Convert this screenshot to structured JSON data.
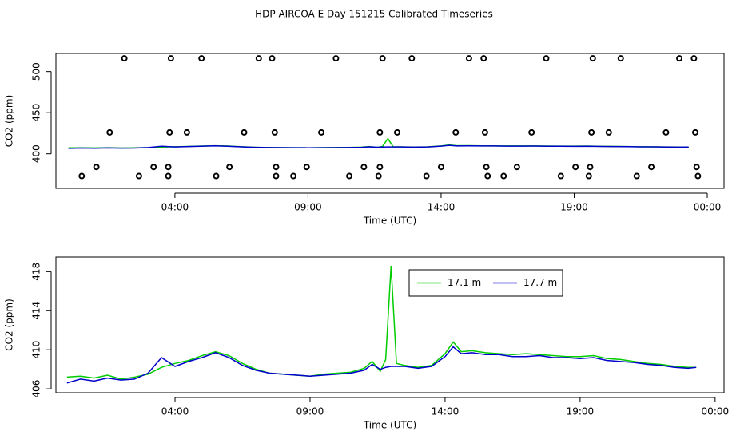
{
  "chart_data": [
    {
      "type": "line",
      "title": "HDP AIRCOA E  Day 151215  Calibrated Timeseries",
      "x_label": "Time (UTC)",
      "y_label": "CO2 (ppm)",
      "xlim": [
        -0.47,
        24.63
      ],
      "ylim": [
        358,
        522
      ],
      "xticks": [
        {
          "value": 4,
          "label": "04:00"
        },
        {
          "value": 9,
          "label": "09:00"
        },
        {
          "value": 14,
          "label": "14:00"
        },
        {
          "value": 19,
          "label": "19:00"
        },
        {
          "value": 24,
          "label": "00:00"
        }
      ],
      "yticks": [
        400,
        450,
        500
      ],
      "x": [
        0,
        0.5,
        1,
        1.5,
        2,
        2.5,
        3,
        3.5,
        4,
        4.5,
        5,
        5.5,
        6,
        6.5,
        7,
        7.5,
        8,
        8.5,
        9,
        9.5,
        10,
        10.5,
        11,
        11.3,
        11.6,
        11.8,
        12,
        12.2,
        12.5,
        13,
        13.5,
        14,
        14.3,
        14.6,
        15,
        15.5,
        16,
        16.5,
        17,
        17.5,
        18,
        18.5,
        19,
        19.5,
        20,
        20.5,
        21,
        21.5,
        22,
        22.5,
        23,
        23.3
      ],
      "series": [
        {
          "kind": "line",
          "color": "#00cc00",
          "values": [
            407.2,
            407.3,
            407.1,
            407.4,
            407.0,
            407.2,
            407.5,
            408.2,
            408.6,
            408.9,
            409.4,
            409.8,
            409.4,
            408.6,
            408.0,
            407.6,
            407.5,
            407.4,
            407.3,
            407.5,
            407.6,
            407.7,
            408.1,
            408.8,
            407.8,
            409.0,
            418.6,
            408.6,
            408.4,
            408.2,
            408.4,
            409.6,
            410.8,
            409.8,
            409.9,
            409.7,
            409.6,
            409.5,
            409.6,
            409.5,
            409.4,
            409.3,
            409.3,
            409.4,
            409.1,
            409.0,
            408.8,
            408.6,
            408.5,
            408.3,
            408.2,
            408.2
          ]
        },
        {
          "kind": "line",
          "color": "#0000cc",
          "values": [
            406.6,
            407.0,
            406.8,
            407.1,
            406.9,
            407.0,
            407.6,
            409.2,
            408.3,
            408.8,
            409.2,
            409.7,
            409.2,
            408.4,
            407.9,
            407.6,
            407.5,
            407.4,
            407.3,
            407.4,
            407.5,
            407.6,
            407.9,
            408.5,
            408.0,
            408.2,
            408.3,
            408.3,
            408.3,
            408.1,
            408.3,
            409.3,
            410.3,
            409.6,
            409.7,
            409.5,
            409.5,
            409.3,
            409.3,
            409.4,
            409.2,
            409.2,
            409.1,
            409.2,
            408.9,
            408.8,
            408.7,
            408.5,
            408.4,
            408.2,
            408.1,
            408.2
          ]
        },
        {
          "kind": "points",
          "color": "#000000",
          "x": [
            2.1,
            3.85,
            5.0,
            7.15,
            7.65,
            10.05,
            11.8,
            12.9,
            15.05,
            15.6,
            17.95,
            19.7,
            20.75,
            22.95,
            23.5,
            1.55,
            3.8,
            4.45,
            6.6,
            7.75,
            9.5,
            11.7,
            12.35,
            14.55,
            15.65,
            17.4,
            19.65,
            20.3,
            22.45,
            23.55,
            1.05,
            3.2,
            3.75,
            6.05,
            7.8,
            8.95,
            11.1,
            11.7,
            14.0,
            15.7,
            16.85,
            19.05,
            19.6,
            21.9,
            23.6,
            0.5,
            2.65,
            3.75,
            5.55,
            7.8,
            8.45,
            10.55,
            11.65,
            13.45,
            15.75,
            16.35,
            18.5,
            19.55,
            21.35,
            23.65
          ],
          "values": [
            516,
            516,
            516,
            516,
            516,
            516,
            516,
            516,
            516,
            516,
            516,
            516,
            516,
            516,
            516,
            426,
            426,
            426,
            426,
            426,
            426,
            426,
            426,
            426,
            426,
            426,
            426,
            426,
            426,
            426,
            384,
            384,
            384,
            384,
            384,
            384,
            384,
            384,
            384,
            384,
            384,
            384,
            384,
            384,
            384,
            373,
            373,
            373,
            373,
            373,
            373,
            373,
            373,
            373,
            373,
            373,
            373,
            373,
            373,
            373
          ]
        }
      ]
    },
    {
      "type": "line",
      "x_label": "Time (UTC)",
      "y_label": "CO2 (ppm)",
      "xlim": [
        -0.41,
        24.33
      ],
      "ylim": [
        405.6,
        419.5
      ],
      "xticks": [
        {
          "value": 4,
          "label": "04:00"
        },
        {
          "value": 9,
          "label": "09:00"
        },
        {
          "value": 14,
          "label": "14:00"
        },
        {
          "value": 19,
          "label": "19:00"
        },
        {
          "value": 24,
          "label": "00:00"
        }
      ],
      "yticks": [
        406,
        410,
        414,
        418
      ],
      "legend": "top-center",
      "x": [
        0,
        0.5,
        1,
        1.5,
        2,
        2.5,
        3,
        3.5,
        4,
        4.5,
        5,
        5.5,
        6,
        6.5,
        7,
        7.5,
        8,
        8.5,
        9,
        9.5,
        10,
        10.5,
        11,
        11.3,
        11.6,
        11.8,
        12,
        12.2,
        12.5,
        13,
        13.5,
        14,
        14.3,
        14.6,
        15,
        15.5,
        16,
        16.5,
        17,
        17.5,
        18,
        18.5,
        19,
        19.5,
        20,
        20.5,
        21,
        21.5,
        22,
        22.5,
        23,
        23.3
      ],
      "series": [
        {
          "kind": "line",
          "name": "17.1 m",
          "color": "#00cc00",
          "values": [
            407.2,
            407.3,
            407.1,
            407.4,
            407.0,
            407.2,
            407.5,
            408.2,
            408.6,
            408.9,
            409.4,
            409.8,
            409.4,
            408.6,
            408.0,
            407.6,
            407.5,
            407.4,
            407.3,
            407.5,
            407.6,
            407.7,
            408.1,
            408.8,
            407.8,
            409.0,
            418.6,
            408.6,
            408.4,
            408.2,
            408.4,
            409.6,
            410.8,
            409.8,
            409.9,
            409.7,
            409.6,
            409.5,
            409.6,
            409.5,
            409.4,
            409.3,
            409.3,
            409.4,
            409.1,
            409.0,
            408.8,
            408.6,
            408.5,
            408.3,
            408.2,
            408.2
          ]
        },
        {
          "kind": "line",
          "name": "17.7 m",
          "color": "#0000cc",
          "values": [
            406.6,
            407.0,
            406.8,
            407.1,
            406.9,
            407.0,
            407.6,
            409.2,
            408.3,
            408.8,
            409.2,
            409.7,
            409.2,
            408.4,
            407.9,
            407.6,
            407.5,
            407.4,
            407.3,
            407.4,
            407.5,
            407.6,
            407.9,
            408.5,
            408.0,
            408.2,
            408.3,
            408.3,
            408.3,
            408.1,
            408.3,
            409.3,
            410.3,
            409.6,
            409.7,
            409.5,
            409.5,
            409.3,
            409.3,
            409.4,
            409.2,
            409.2,
            409.1,
            409.2,
            408.9,
            408.8,
            408.7,
            408.5,
            408.4,
            408.2,
            408.1,
            408.2
          ]
        }
      ]
    }
  ]
}
